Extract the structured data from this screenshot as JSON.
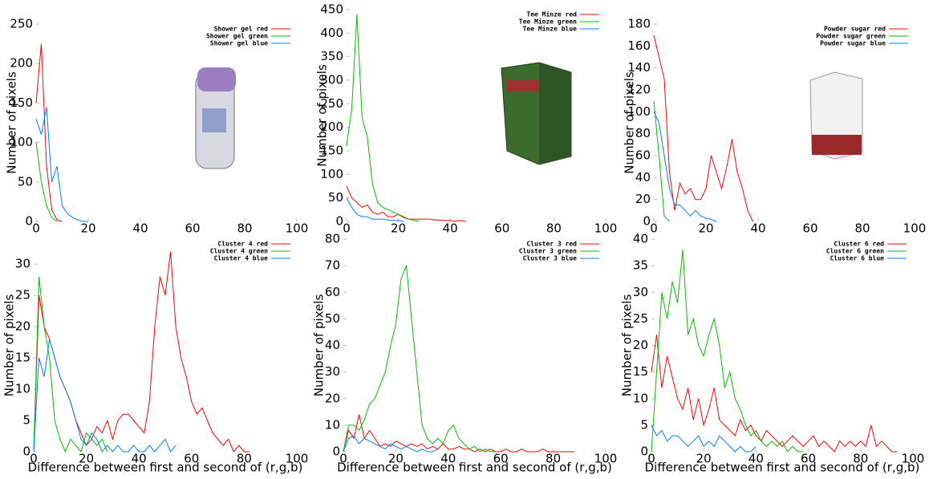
{
  "chart_data": [
    {
      "type": "line",
      "ylabel": "Number of pixels",
      "legend": "upper right",
      "x": [
        0,
        2,
        4,
        6,
        8,
        10,
        12,
        14,
        16,
        18,
        20
      ],
      "xlim": [
        0,
        100
      ],
      "xticks": [
        0,
        20,
        40,
        60,
        80,
        100
      ],
      "ylim": [
        0,
        250
      ],
      "yticks": [
        0,
        50,
        100,
        150,
        200,
        250
      ],
      "series": [
        {
          "name": "Shower gel red",
          "color": "#ff0000",
          "values": [
            150,
            225,
            70,
            15,
            2,
            0,
            null,
            null,
            null,
            null,
            null
          ]
        },
        {
          "name": "Shower gel green",
          "color": "#00c000",
          "values": [
            100,
            50,
            20,
            5,
            0,
            null,
            null,
            null,
            null,
            null,
            null
          ]
        },
        {
          "name": "Shower gel blue",
          "color": "#0080ff",
          "values": [
            130,
            110,
            145,
            50,
            70,
            20,
            10,
            5,
            2,
            0,
            0
          ]
        }
      ]
    },
    {
      "type": "line",
      "ylabel": "Number of pixels",
      "legend": "upper right",
      "x": [
        0,
        2,
        4,
        6,
        8,
        10,
        12,
        14,
        16,
        18,
        20,
        22,
        24,
        26,
        28,
        30,
        32,
        34,
        36,
        38,
        40,
        42,
        44,
        46
      ],
      "xlim": [
        0,
        100
      ],
      "xticks": [
        0,
        20,
        40,
        60,
        80,
        100
      ],
      "ylim": [
        0,
        450
      ],
      "yticks": [
        0,
        50,
        100,
        150,
        200,
        250,
        300,
        350,
        400,
        450
      ],
      "series": [
        {
          "name": "Tee Minze red",
          "color": "#ff0000",
          "values": [
            75,
            50,
            40,
            30,
            35,
            20,
            15,
            20,
            10,
            10,
            15,
            8,
            5,
            5,
            5,
            5,
            5,
            3,
            3,
            2,
            2,
            0,
            2,
            0
          ]
        },
        {
          "name": "Tee Minze green",
          "color": "#00c000",
          "values": [
            160,
            240,
            440,
            220,
            180,
            80,
            40,
            30,
            25,
            20,
            15,
            10,
            5,
            2,
            0,
            null,
            null,
            null,
            null,
            null,
            null,
            null,
            null,
            null
          ]
        },
        {
          "name": "Tee Minze blue",
          "color": "#0080ff",
          "values": [
            50,
            30,
            15,
            10,
            10,
            5,
            5,
            5,
            3,
            2,
            2,
            0,
            null,
            null,
            null,
            null,
            null,
            null,
            null,
            null,
            null,
            null,
            null,
            null
          ]
        }
      ]
    },
    {
      "type": "line",
      "ylabel": "Number of pixels",
      "legend": "upper right",
      "x": [
        0,
        2,
        4,
        6,
        8,
        10,
        12,
        14,
        16,
        18,
        20,
        22,
        24,
        26,
        28,
        30,
        32,
        34,
        36,
        38,
        40
      ],
      "xlim": [
        0,
        100
      ],
      "xticks": [
        0,
        20,
        40,
        60,
        80,
        100
      ],
      "ylim": [
        0,
        180
      ],
      "yticks": [
        0,
        20,
        40,
        60,
        80,
        100,
        120,
        140,
        160,
        180
      ],
      "series": [
        {
          "name": "Powder sugar red",
          "color": "#ff0000",
          "values": [
            170,
            150,
            130,
            45,
            10,
            35,
            25,
            30,
            20,
            20,
            30,
            60,
            45,
            30,
            50,
            75,
            45,
            30,
            10,
            0,
            null
          ]
        },
        {
          "name": "Powder sugar green",
          "color": "#00c000",
          "values": [
            110,
            60,
            5,
            0,
            null,
            null,
            null,
            null,
            null,
            null,
            null,
            null,
            null,
            null,
            null,
            null,
            null,
            null,
            null,
            null,
            null
          ]
        },
        {
          "name": "Powder sugar blue",
          "color": "#0080ff",
          "values": [
            100,
            90,
            60,
            30,
            15,
            15,
            10,
            5,
            10,
            5,
            3,
            2,
            0,
            null,
            null,
            null,
            null,
            null,
            null,
            null,
            null
          ]
        }
      ]
    },
    {
      "type": "line",
      "xlabel": "Difference between first and second of (r,g,b)",
      "ylabel": "Number of pixels",
      "legend": "upper right",
      "x": [
        0,
        2,
        4,
        6,
        8,
        10,
        12,
        14,
        16,
        18,
        20,
        22,
        24,
        26,
        28,
        30,
        32,
        34,
        36,
        38,
        40,
        42,
        44,
        46,
        48,
        50,
        52,
        54,
        56,
        58,
        60,
        62,
        64,
        66,
        68,
        70,
        72,
        74,
        76,
        78,
        80,
        82
      ],
      "xlim": [
        0,
        100
      ],
      "xticks": [
        0,
        20,
        40,
        60,
        80,
        100
      ],
      "ylim": [
        0,
        34
      ],
      "yticks": [
        0,
        5,
        10,
        15,
        20,
        25,
        30
      ],
      "series": [
        {
          "name": "Cluster 4 red",
          "color": "#ff0000",
          "values": [
            0,
            25,
            20,
            18,
            15,
            12,
            10,
            8,
            5,
            3,
            1,
            2,
            4,
            3,
            5,
            2,
            5,
            6,
            6,
            5,
            4,
            3,
            8,
            20,
            28,
            25,
            32,
            20,
            15,
            12,
            8,
            6,
            7,
            5,
            3,
            2,
            1,
            2,
            0,
            1,
            0,
            0
          ]
        },
        {
          "name": "Cluster 4 green",
          "color": "#00c000",
          "values": [
            0,
            28,
            20,
            15,
            5,
            2,
            0,
            2,
            1,
            0,
            3,
            2,
            1,
            2,
            0,
            null,
            null,
            null,
            null,
            null,
            null,
            null,
            null,
            null,
            null,
            null,
            null,
            null,
            null,
            null,
            null,
            null,
            null,
            null,
            null,
            null,
            null,
            null,
            null,
            null,
            null,
            null
          ]
        },
        {
          "name": "Cluster 4 blue",
          "color": "#0080ff",
          "values": [
            0,
            15,
            12,
            18,
            15,
            12,
            10,
            8,
            5,
            2,
            1,
            3,
            2,
            0,
            1,
            0,
            1,
            0,
            0,
            1,
            0,
            0,
            1,
            0,
            1,
            2,
            0,
            1,
            null,
            null,
            null,
            null,
            null,
            null,
            null,
            null,
            null,
            null,
            null,
            null,
            null,
            null
          ]
        }
      ]
    },
    {
      "type": "line",
      "xlabel": "Difference between first and second of (r,g,b)",
      "ylabel": "Number of pixels",
      "legend": "upper right",
      "x": [
        0,
        2,
        4,
        6,
        8,
        10,
        12,
        14,
        16,
        18,
        20,
        22,
        24,
        26,
        28,
        30,
        32,
        34,
        36,
        38,
        40,
        42,
        44,
        46,
        48,
        50,
        52,
        54,
        56,
        58,
        60,
        62,
        64,
        66,
        68,
        70,
        72,
        74,
        76,
        78,
        80,
        82,
        84,
        86,
        88
      ],
      "xlim": [
        0,
        100
      ],
      "xticks": [
        0,
        20,
        40,
        60,
        80,
        100
      ],
      "ylim": [
        0,
        80
      ],
      "yticks": [
        0,
        10,
        20,
        30,
        40,
        50,
        60,
        70,
        80
      ],
      "series": [
        {
          "name": "Cluster 3 red",
          "color": "#ff0000",
          "values": [
            0,
            8,
            5,
            14,
            5,
            8,
            5,
            2,
            3,
            2,
            4,
            3,
            2,
            3,
            2,
            3,
            1,
            2,
            1,
            3,
            1,
            1,
            2,
            1,
            1,
            0,
            1,
            0,
            1,
            0,
            0,
            1,
            0,
            0,
            1,
            0,
            0,
            0,
            1,
            0,
            0,
            0,
            0,
            0,
            0
          ]
        },
        {
          "name": "Cluster 3 green",
          "color": "#00c000",
          "values": [
            0,
            10,
            10,
            8,
            12,
            18,
            20,
            25,
            30,
            40,
            48,
            65,
            70,
            50,
            30,
            10,
            5,
            3,
            5,
            3,
            8,
            10,
            5,
            3,
            1,
            2,
            0,
            1,
            0,
            0,
            null,
            null,
            null,
            null,
            null,
            null,
            null,
            null,
            null,
            null,
            null,
            null,
            null,
            null,
            null
          ]
        },
        {
          "name": "Cluster 3 blue",
          "color": "#0080ff",
          "values": [
            0,
            5,
            6,
            3,
            5,
            4,
            3,
            2,
            1,
            3,
            2,
            1,
            2,
            1,
            0,
            1,
            0,
            0,
            1,
            null,
            null,
            null,
            null,
            null,
            null,
            null,
            null,
            null,
            null,
            null,
            null,
            null,
            null,
            null,
            null,
            null,
            null,
            null,
            null,
            null,
            null,
            null,
            null,
            null,
            null
          ]
        }
      ]
    },
    {
      "type": "line",
      "xlabel": "Difference between first and second of (r,g,b)",
      "ylabel": "Number of pixels",
      "legend": "upper right",
      "x": [
        0,
        2,
        4,
        6,
        8,
        10,
        12,
        14,
        16,
        18,
        20,
        22,
        24,
        26,
        28,
        30,
        32,
        34,
        36,
        38,
        40,
        42,
        44,
        46,
        48,
        50,
        52,
        54,
        56,
        58,
        60,
        62,
        64,
        66,
        68,
        70,
        72,
        74,
        76,
        78,
        80,
        82,
        84,
        86,
        88,
        90,
        92,
        94
      ],
      "xlim": [
        0,
        100
      ],
      "xticks": [
        0,
        20,
        40,
        60,
        80,
        100
      ],
      "ylim": [
        0,
        40
      ],
      "yticks": [
        0,
        5,
        10,
        15,
        20,
        25,
        30,
        35,
        40
      ],
      "series": [
        {
          "name": "Cluster 6 red",
          "color": "#ff0000",
          "values": [
            15,
            22,
            12,
            18,
            14,
            10,
            8,
            12,
            6,
            10,
            5,
            8,
            12,
            6,
            5,
            4,
            3,
            6,
            4,
            5,
            3,
            2,
            4,
            3,
            2,
            1,
            2,
            3,
            2,
            1,
            2,
            3,
            1,
            2,
            1,
            0,
            2,
            1,
            2,
            1,
            2,
            1,
            5,
            1,
            2,
            1,
            0,
            0
          ]
        },
        {
          "name": "Cluster 6 green",
          "color": "#00c000",
          "values": [
            0,
            15,
            30,
            25,
            32,
            28,
            38,
            22,
            25,
            20,
            18,
            22,
            25,
            20,
            12,
            15,
            10,
            8,
            5,
            3,
            4,
            2,
            1,
            2,
            1,
            2,
            0,
            1,
            0,
            0,
            null,
            null,
            null,
            null,
            null,
            null,
            null,
            null,
            null,
            null,
            null,
            null,
            null,
            null,
            null,
            null,
            null,
            null
          ]
        },
        {
          "name": "Cluster 6 blue",
          "color": "#0080ff",
          "values": [
            5,
            3,
            4,
            2,
            3,
            3,
            2,
            1,
            2,
            3,
            1,
            2,
            1,
            3,
            2,
            1,
            0,
            1,
            0,
            0,
            1,
            null,
            null,
            null,
            null,
            null,
            null,
            null,
            null,
            null,
            null,
            null,
            null,
            null,
            null,
            null,
            null,
            null,
            null,
            null,
            null,
            null,
            null,
            null,
            null,
            null,
            null,
            null
          ]
        }
      ]
    }
  ]
}
